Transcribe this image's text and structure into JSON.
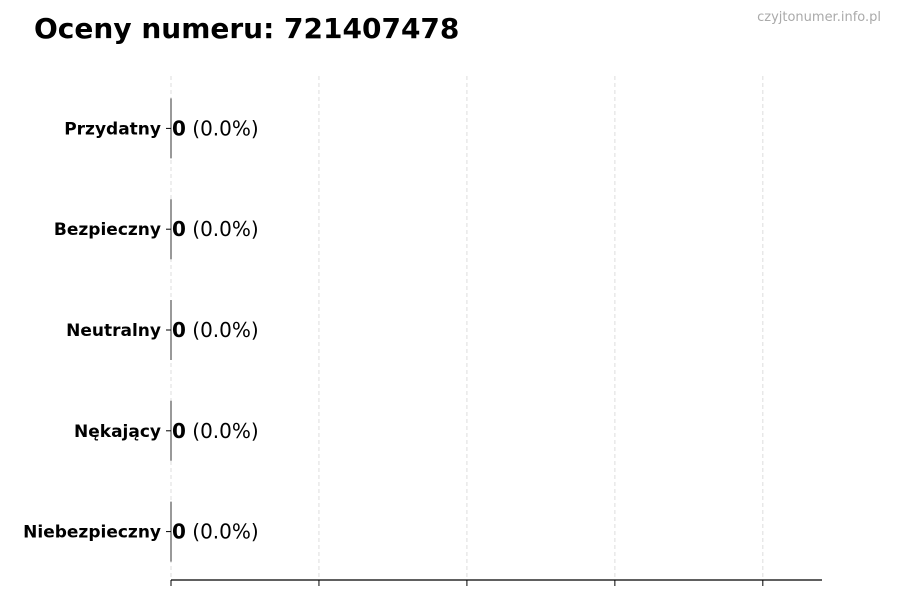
{
  "chart_data": {
    "type": "bar",
    "orientation": "horizontal",
    "title": "Oceny numeru: 721407478",
    "watermark": "czyjtonumer.info.pl",
    "categories": [
      "Przydatny",
      "Bezpieczny",
      "Neutralny",
      "Nękający",
      "Niebezpieczny"
    ],
    "values": [
      0,
      0,
      0,
      0,
      0
    ],
    "labels": [
      {
        "count": "0",
        "pct": "(0.0%)"
      },
      {
        "count": "0",
        "pct": "(0.0%)"
      },
      {
        "count": "0",
        "pct": "(0.0%)"
      },
      {
        "count": "0",
        "pct": "(0.0%)"
      },
      {
        "count": "0",
        "pct": "(0.0%)"
      }
    ],
    "xlim": [
      0,
      4.4
    ],
    "xticks": [
      0,
      1,
      2,
      3,
      4
    ],
    "xtick_labels_shown": false,
    "grid": "x dashed",
    "colors": {
      "grid": "#dddddd",
      "axis": "#000000",
      "watermark": "#aaaaaa"
    }
  }
}
